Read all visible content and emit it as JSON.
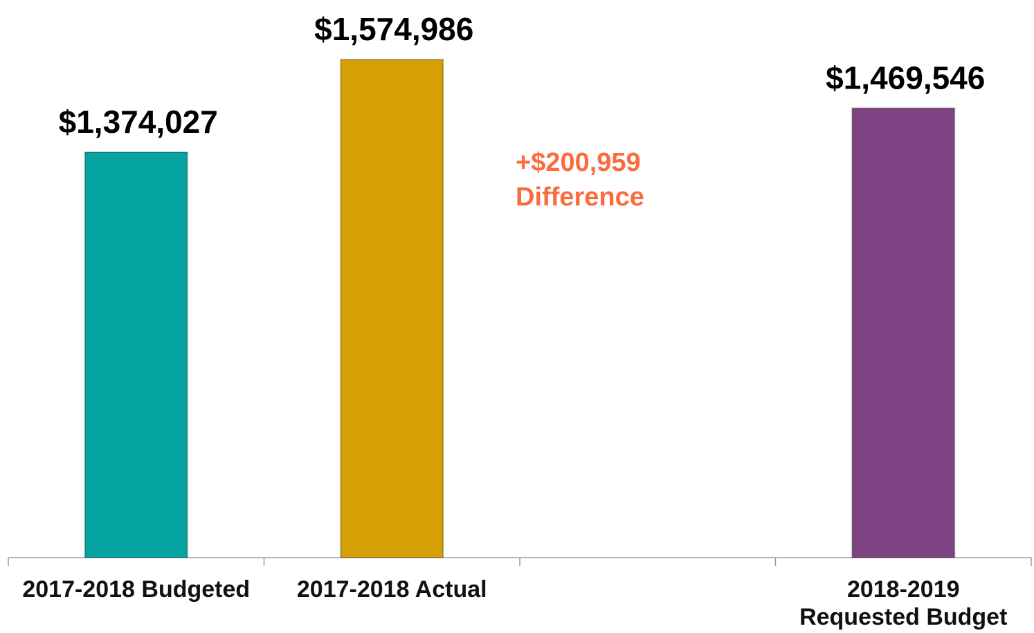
{
  "chart_data": {
    "type": "bar",
    "categories": [
      "2017-2018 Budgeted",
      "2017-2018 Actual",
      null,
      "2018-2019\nRequested Budget"
    ],
    "values": [
      1374027,
      1574986,
      null,
      1469546
    ],
    "value_labels": [
      "$1,374,027",
      "$1,574,986",
      null,
      "$1,469,546"
    ],
    "colors": [
      "#06a3a3",
      "#d4a004",
      null,
      "#7f4282"
    ],
    "ylim": [
      495000,
      1650000
    ],
    "annotation": "+$200,959\nDifference",
    "annotation_color": "#fb6b3d"
  }
}
